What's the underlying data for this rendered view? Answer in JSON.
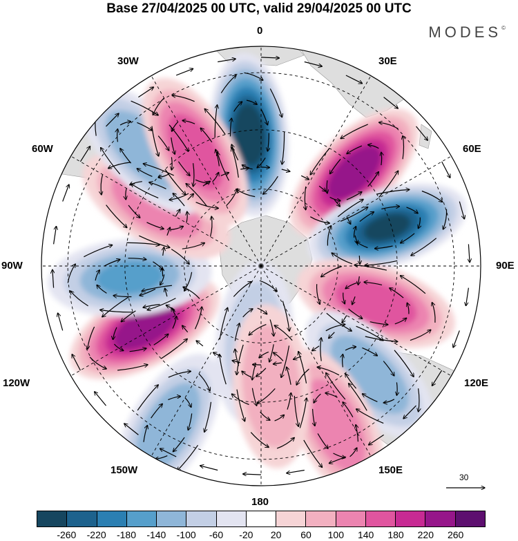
{
  "title": "Base 27/04/2025 00 UTC, valid 29/04/2025 00 UTC",
  "brand": "MODES",
  "brand_mark": "©",
  "lon_labels": {
    "n": "0",
    "ne": "30E",
    "e60": "60E",
    "e90": "90E",
    "e120": "120E",
    "e150": "150E",
    "s": "180",
    "w150": "150W",
    "w120": "120W",
    "w90": "90W",
    "w60": "60W",
    "w30": "30W"
  },
  "vector_scale_label": "30",
  "colorbar": {
    "colors": [
      "#16465f",
      "#1d628d",
      "#2b7fb2",
      "#569fcb",
      "#8fb6d8",
      "#c3cfe5",
      "#e3e4f1",
      "#ffffff",
      "#f6d4d6",
      "#f2b0c0",
      "#ec84b0",
      "#e0559f",
      "#c72a93",
      "#96168a",
      "#5d0f6f"
    ],
    "ticks": [
      "-260",
      "-220",
      "-180",
      "-140",
      "-100",
      "-60",
      "-20",
      "20",
      "60",
      "100",
      "140",
      "180",
      "220",
      "260"
    ]
  },
  "anomalies": [
    {
      "lon": -5,
      "r": 0.6,
      "value": -270
    },
    {
      "lon": 45,
      "r": 0.6,
      "value": 260
    },
    {
      "lon": 73,
      "r": 0.6,
      "value": -260
    },
    {
      "lon": 108,
      "r": 0.55,
      "value": 180
    },
    {
      "lon": 135,
      "r": 0.7,
      "value": -120
    },
    {
      "lon": 155,
      "r": 0.8,
      "value": 120
    },
    {
      "lon": -150,
      "r": 0.85,
      "value": -120
    },
    {
      "lon": -118,
      "r": 0.6,
      "value": 230
    },
    {
      "lon": -95,
      "r": 0.6,
      "value": -140
    },
    {
      "lon": -60,
      "r": 0.55,
      "value": 140
    },
    {
      "lon": -45,
      "r": 0.75,
      "value": -120
    },
    {
      "lon": -30,
      "r": 0.6,
      "value": 180
    },
    {
      "lon": -175,
      "r": 0.35,
      "value": -80
    },
    {
      "lon": 175,
      "r": 0.55,
      "value": 80
    }
  ]
}
